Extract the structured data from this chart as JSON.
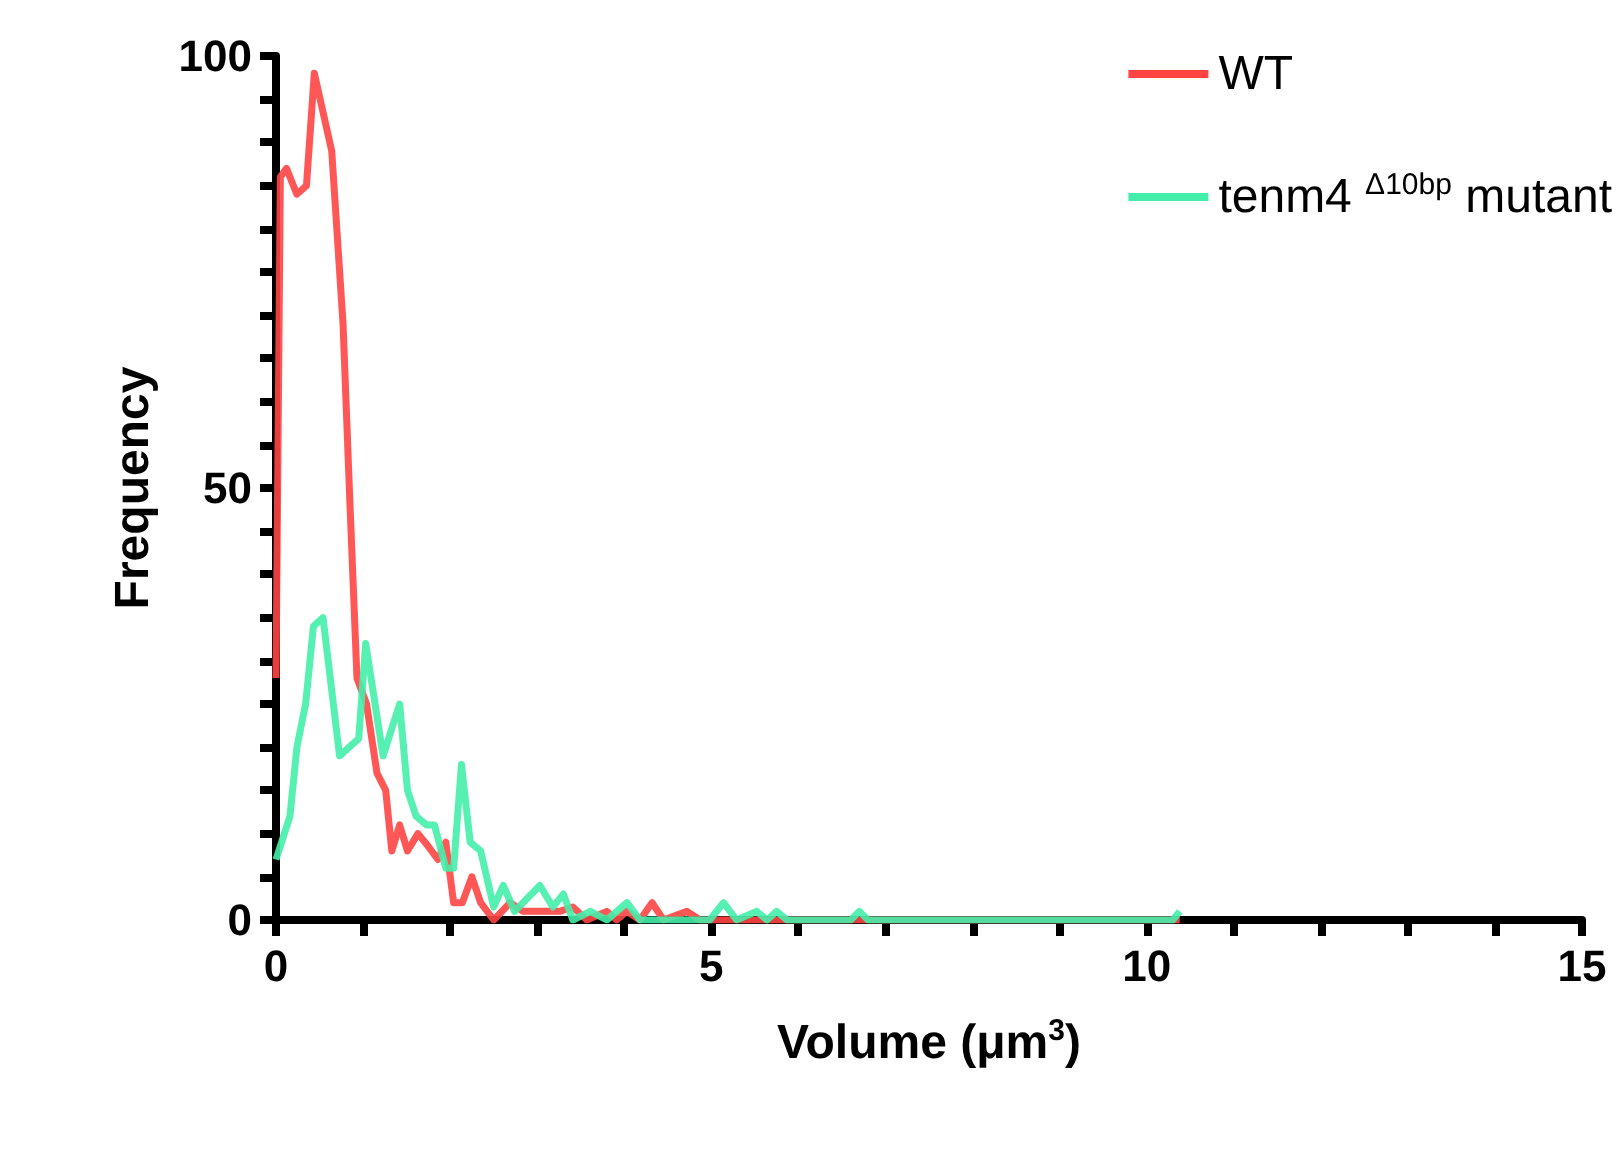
{
  "chart_data": {
    "type": "line",
    "xlabel": "Volume (μm$^{3}$)",
    "ylabel": "Frequency",
    "xlim": [
      0,
      15
    ],
    "ylim": [
      0,
      100
    ],
    "xticks": [
      0,
      {
        "value": 1,
        "label": null
      },
      {
        "value": 2,
        "label": null
      },
      {
        "value": 3,
        "label": null
      },
      {
        "value": 4,
        "label": null
      },
      5,
      {
        "value": 6,
        "label": null
      },
      {
        "value": 7,
        "label": null
      },
      {
        "value": 8,
        "label": null
      },
      {
        "value": 9,
        "label": null
      },
      10,
      {
        "value": 11,
        "label": null
      },
      {
        "value": 12,
        "label": null
      },
      {
        "value": 13,
        "label": null
      },
      {
        "value": 14,
        "label": null
      },
      15
    ],
    "yticks": [
      0,
      {
        "value": 5,
        "label": null
      },
      {
        "value": 10,
        "label": null
      },
      {
        "value": 15,
        "label": null
      },
      {
        "value": 20,
        "label": null
      },
      {
        "value": 25,
        "label": null
      },
      {
        "value": 30,
        "label": null
      },
      {
        "value": 35,
        "label": null
      },
      {
        "value": 40,
        "label": null
      },
      {
        "value": 45,
        "label": null
      },
      50,
      {
        "value": 55,
        "label": null
      },
      {
        "value": 60,
        "label": null
      },
      {
        "value": 65,
        "label": null
      },
      {
        "value": 70,
        "label": null
      },
      {
        "value": 75,
        "label": null
      },
      {
        "value": 80,
        "label": null
      },
      {
        "value": 85,
        "label": null
      },
      {
        "value": 90,
        "label": null
      },
      {
        "value": 95,
        "label": null
      },
      100
    ],
    "grid": false,
    "legend": "top right",
    "marker": "none",
    "line_style": "solid",
    "series": [
      {
        "name": "WT",
        "color": "#ff4444",
        "x": [
          0,
          0.05,
          0.12,
          0.24,
          0.35,
          0.44,
          0.64,
          0.77,
          0.85,
          0.93,
          1.04,
          1.16,
          1.26,
          1.33,
          1.42,
          1.51,
          1.63,
          1.75,
          1.86,
          1.95,
          2.04,
          2.14,
          2.25,
          2.35,
          2.5,
          2.69,
          2.84,
          3.07,
          3.26,
          3.41,
          3.57,
          3.8,
          3.91,
          4.03,
          4.18,
          4.32,
          4.45,
          4.72,
          4.87,
          6,
          8,
          10.38
        ],
        "values": [
          28,
          86,
          87,
          84,
          85,
          98,
          89,
          69,
          48,
          28,
          25,
          17,
          15,
          8,
          11,
          8,
          10,
          8.5,
          7,
          9,
          2,
          2,
          5,
          2,
          0,
          2,
          1,
          1,
          1,
          1.5,
          0,
          1,
          0,
          1,
          0,
          2,
          0,
          1,
          0,
          0,
          0,
          0
        ]
      },
      {
        "name": "tenm4 $^{Δ10bp}$ mutant",
        "color": "#44eeaa",
        "x": [
          0,
          0.16,
          0.24,
          0.34,
          0.43,
          0.54,
          0.73,
          0.95,
          1.03,
          1.23,
          1.42,
          1.51,
          1.61,
          1.73,
          1.82,
          1.95,
          2.04,
          2.13,
          2.23,
          2.35,
          2.5,
          2.61,
          2.74,
          3.03,
          3.18,
          3.3,
          3.41,
          3.61,
          3.8,
          4.03,
          4.18,
          4.45,
          4.72,
          4.98,
          5.14,
          5.29,
          5.52,
          5.64,
          5.75,
          5.87,
          6.6,
          6.7,
          6.8,
          10.3,
          10.38
        ],
        "values": [
          7,
          12,
          20,
          25,
          34,
          35,
          19,
          21,
          32,
          19,
          25,
          15,
          12,
          11,
          11,
          6,
          6,
          18,
          9,
          8,
          1.5,
          4,
          1,
          4,
          1.5,
          3,
          0,
          1,
          0,
          2,
          0,
          0,
          0,
          0,
          2,
          0,
          1,
          0,
          1,
          0,
          0,
          1,
          0,
          0,
          1
        ]
      }
    ]
  }
}
